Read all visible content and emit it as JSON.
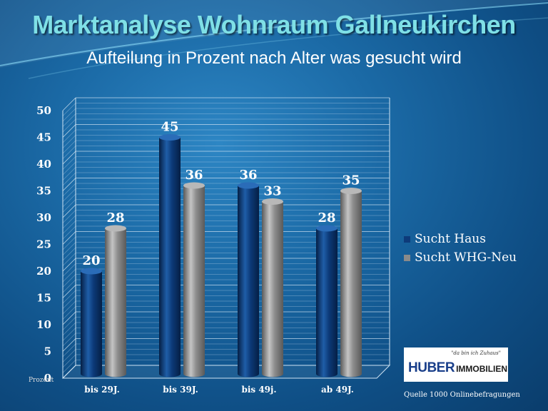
{
  "title": "Marktanalyse Wohnraum Gallneukirchen",
  "subtitle": "Aufteilung in Prozent nach Alter was gesucht wird",
  "chart_data": {
    "type": "bar",
    "categories": [
      "bis 29J.",
      "bis 39J.",
      "bis 49j.",
      "ab 49J."
    ],
    "series": [
      {
        "name": "Sucht Haus",
        "values": [
          20,
          45,
          36,
          28
        ],
        "color": "#0d3b7a"
      },
      {
        "name": "Sucht WHG-Neu",
        "values": [
          28,
          36,
          33,
          35
        ],
        "color": "#8a8a8a"
      }
    ],
    "ylabel": "Prozent",
    "ylim": [
      0,
      50
    ],
    "yticks": [
      "0",
      "5",
      "10",
      "15",
      "20",
      "25",
      "30",
      "35",
      "40",
      "45",
      "50"
    ],
    "grid": true,
    "legend_position": "right"
  },
  "logo": {
    "slogan": "\"da bin ich Zuhaus\"",
    "brand": "HUBER",
    "brand_suffix": "IMMOBILIEN"
  },
  "source": "Quelle 1000 Onlinebefragungen"
}
